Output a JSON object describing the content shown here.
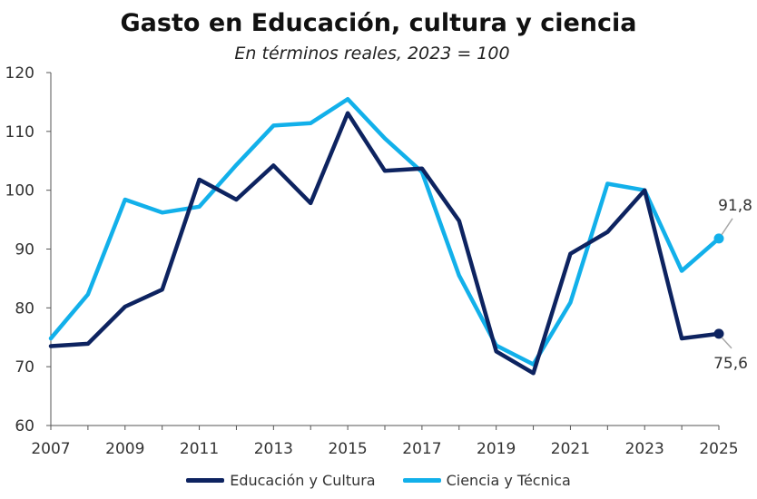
{
  "chart_data": {
    "type": "line",
    "title": "Gasto en Educación, cultura y ciencia",
    "subtitle": "En términos reales, 2023 = 100",
    "xlabel": "",
    "ylabel": "",
    "ylim": [
      60,
      120
    ],
    "yticks": [
      "60",
      "70",
      "80",
      "90",
      "100",
      "110",
      "120"
    ],
    "xlim": [
      2007,
      2025
    ],
    "xticks": [
      "2007",
      "2009",
      "2011",
      "2013",
      "2015",
      "2017",
      "2019",
      "2021",
      "2023",
      "2025"
    ],
    "grid": false,
    "legend_position": "bottom",
    "x": [
      2007,
      2008,
      2009,
      2010,
      2011,
      2012,
      2013,
      2014,
      2015,
      2016,
      2017,
      2018,
      2019,
      2020,
      2021,
      2022,
      2023,
      2024,
      2025
    ],
    "series": [
      {
        "name": "Educación y Cultura",
        "color": "#0d2360",
        "values": [
          73.5,
          73.9,
          80.2,
          83.1,
          101.8,
          98.4,
          104.2,
          97.8,
          113.1,
          103.3,
          103.7,
          94.8,
          72.6,
          68.9,
          89.2,
          92.9,
          100.0,
          74.8,
          75.6
        ],
        "end_label": "75,6"
      },
      {
        "name": "Ciencia y Técnica",
        "color": "#12b0ea",
        "values": [
          74.8,
          82.3,
          98.4,
          96.2,
          97.2,
          104.3,
          111.0,
          111.4,
          115.5,
          108.8,
          103.1,
          85.5,
          73.6,
          70.4,
          80.9,
          101.1,
          100.0,
          86.3,
          91.8
        ],
        "end_label": "91,8"
      }
    ]
  }
}
